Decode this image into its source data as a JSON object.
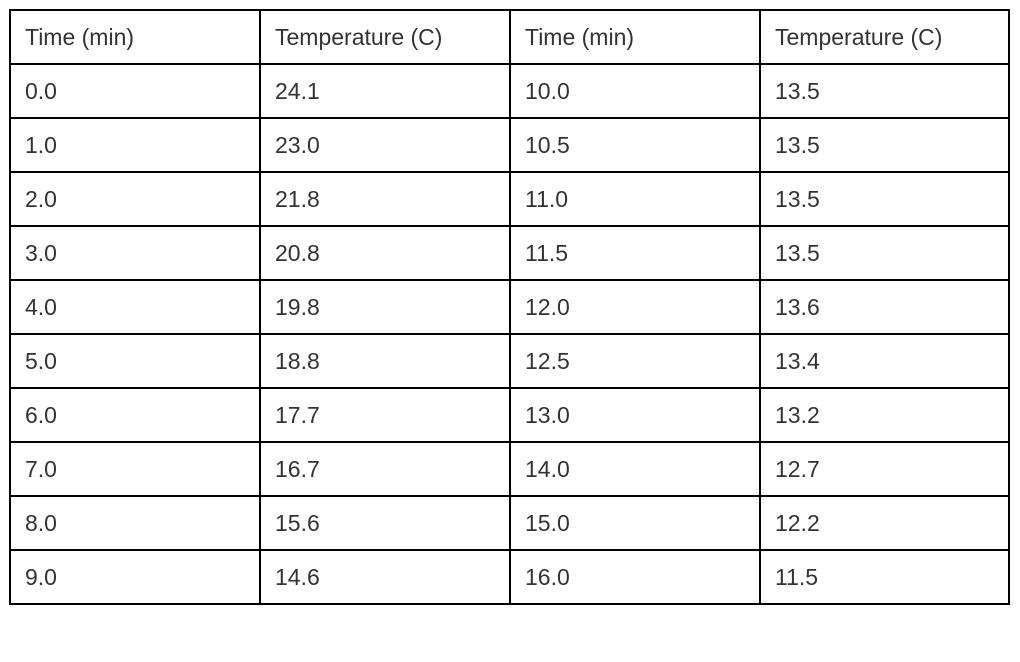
{
  "table": {
    "headers": [
      "Time (min)",
      "Temperature (C)",
      "Time (min)",
      "Temperature (C)"
    ],
    "rows": [
      [
        "0.0",
        "24.1",
        "10.0",
        "13.5"
      ],
      [
        "1.0",
        "23.0",
        "10.5",
        "13.5"
      ],
      [
        "2.0",
        "21.8",
        "11.0",
        "13.5"
      ],
      [
        "3.0",
        "20.8",
        "11.5",
        "13.5"
      ],
      [
        "4.0",
        "19.8",
        "12.0",
        "13.6"
      ],
      [
        "5.0",
        "18.8",
        "12.5",
        "13.4"
      ],
      [
        "6.0",
        "17.7",
        "13.0",
        "13.2"
      ],
      [
        "7.0",
        "16.7",
        "14.0",
        "12.7"
      ],
      [
        "8.0",
        "15.6",
        "15.0",
        "12.2"
      ],
      [
        "9.0",
        "14.6",
        "16.0",
        "11.5"
      ]
    ]
  }
}
